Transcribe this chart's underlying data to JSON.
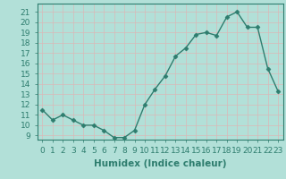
{
  "x": [
    0,
    1,
    2,
    3,
    4,
    5,
    6,
    7,
    8,
    9,
    10,
    11,
    12,
    13,
    14,
    15,
    16,
    17,
    18,
    19,
    20,
    21,
    22,
    23
  ],
  "y": [
    11.5,
    10.5,
    11.0,
    10.5,
    10.0,
    10.0,
    9.5,
    8.8,
    8.8,
    9.5,
    12.0,
    13.5,
    14.8,
    16.7,
    17.5,
    18.8,
    19.0,
    18.7,
    20.5,
    21.0,
    19.5,
    19.5,
    15.5,
    13.3
  ],
  "xlabel": "Humidex (Indice chaleur)",
  "ylabel": "",
  "xlim": [
    -0.5,
    23.5
  ],
  "ylim": [
    8.6,
    21.8
  ],
  "yticks": [
    9,
    10,
    11,
    12,
    13,
    14,
    15,
    16,
    17,
    18,
    19,
    20,
    21
  ],
  "xticks": [
    0,
    1,
    2,
    3,
    4,
    5,
    6,
    7,
    8,
    9,
    10,
    11,
    12,
    13,
    14,
    15,
    16,
    17,
    18,
    19,
    20,
    21,
    22,
    23
  ],
  "line_color": "#2e7d6e",
  "marker": "D",
  "marker_size": 2.5,
  "bg_color": "#b2e0d8",
  "grid_color": "#d9b8b8",
  "xlabel_fontsize": 7.5,
  "tick_fontsize": 6.5
}
